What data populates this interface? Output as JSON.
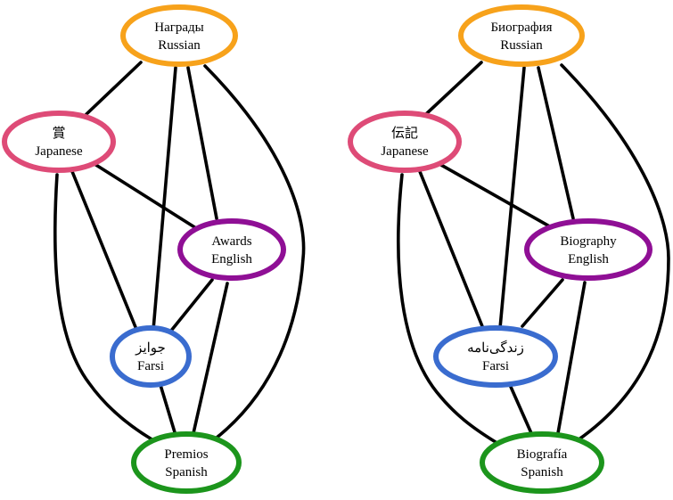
{
  "colors": {
    "russian": "#f7a21b",
    "japanese": "#de4b77",
    "english": "#8f0f95",
    "farsi": "#3a6ccf",
    "spanish": "#1c951c"
  },
  "graphs": [
    {
      "nodes": {
        "russian": {
          "word": "Награды",
          "lang": "Russian"
        },
        "japanese": {
          "word": "賞",
          "lang": "Japanese"
        },
        "english": {
          "word": "Awards",
          "lang": "English"
        },
        "farsi": {
          "word": "جوایز",
          "lang": "Farsi"
        },
        "spanish": {
          "word": "Premios",
          "lang": "Spanish"
        }
      }
    },
    {
      "nodes": {
        "russian": {
          "word": "Биография",
          "lang": "Russian"
        },
        "japanese": {
          "word": "伝記",
          "lang": "Japanese"
        },
        "english": {
          "word": "Biography",
          "lang": "English"
        },
        "farsi": {
          "word": "زندگی‌نامه",
          "lang": "Farsi"
        },
        "spanish": {
          "word": "Biografía",
          "lang": "Spanish"
        }
      }
    }
  ]
}
